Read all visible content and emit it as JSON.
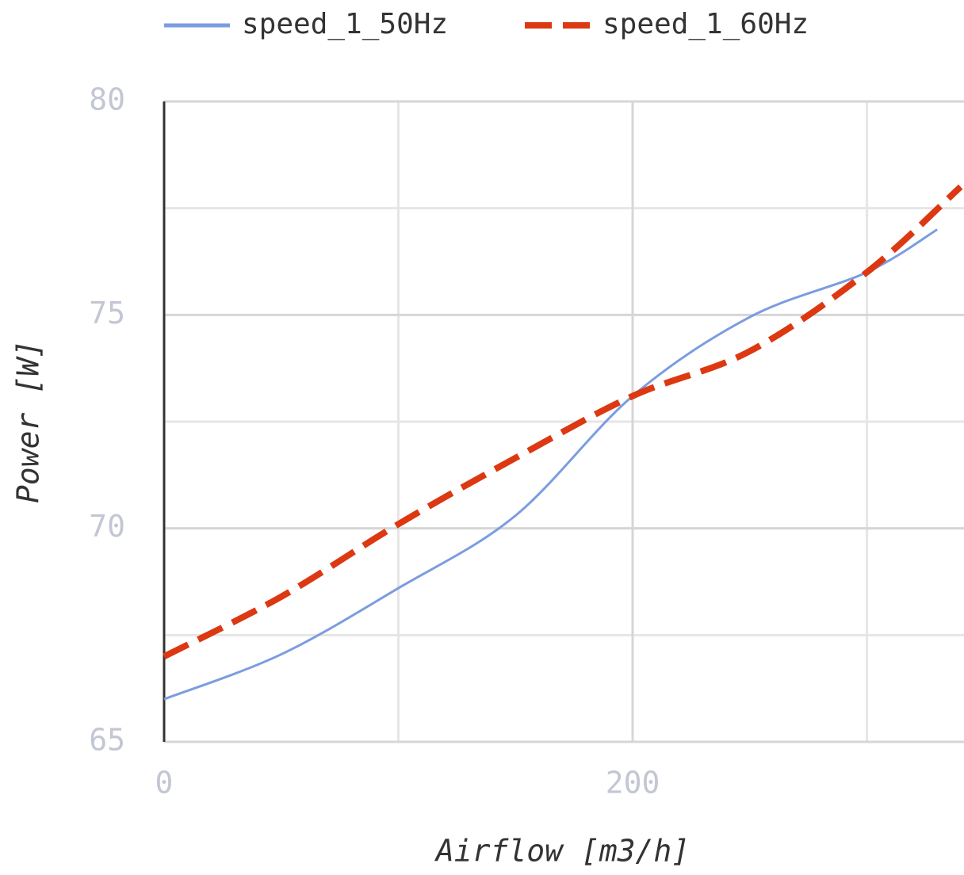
{
  "chart_data": {
    "type": "line",
    "x_label": "Airflow [m3/h]",
    "y_label": "Power [W]",
    "xlim": [
      0,
      341
    ],
    "ylim": [
      65,
      80
    ],
    "xticks": [
      0,
      200
    ],
    "minor_xticks": [
      100,
      300
    ],
    "yticks": [
      65,
      70,
      75,
      80
    ],
    "minor_yticks": [
      67.5,
      72.5,
      77.5
    ],
    "grid": true,
    "series": [
      {
        "name": "speed_1_50Hz",
        "color": "#7b9de0",
        "dash": "solid",
        "x": [
          0,
          50,
          100,
          150,
          200,
          250,
          300,
          330
        ],
        "values": [
          66,
          67.05,
          68.6,
          70.3,
          73.1,
          74.95,
          76,
          77
        ]
      },
      {
        "name": "speed_1_60Hz",
        "color": "#dc3912",
        "dash": "dashed",
        "x": [
          0,
          50,
          100,
          150,
          200,
          250,
          300,
          340
        ],
        "values": [
          67,
          68.4,
          70.1,
          71.65,
          73.1,
          74.15,
          76,
          78
        ]
      }
    ]
  }
}
